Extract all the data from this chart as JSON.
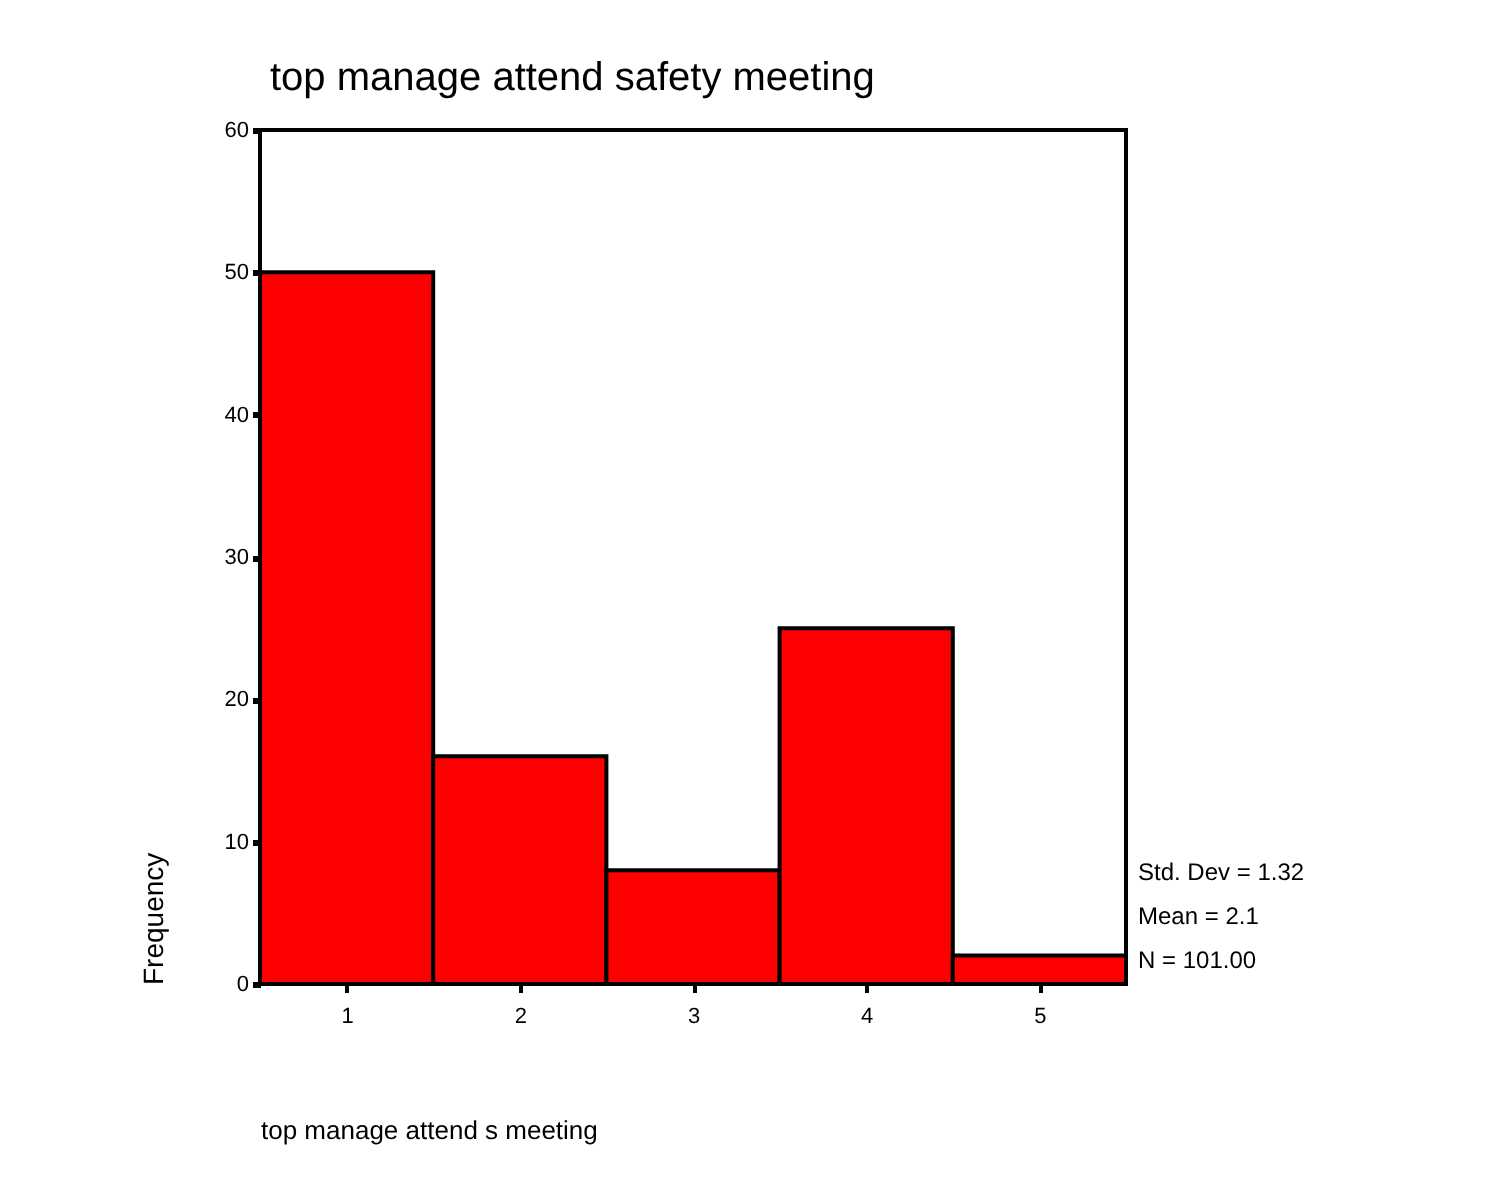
{
  "chart_data": {
    "type": "histogram",
    "title": "top manage attend safety meeting",
    "xlabel": "top manage attend s meeting",
    "ylabel": "Frequency",
    "bins": [
      0.5,
      1.5,
      2.5,
      3.5,
      4.5,
      5.5
    ],
    "values": [
      50,
      16,
      8,
      25,
      2
    ],
    "color": "#ff0000",
    "xlim": [
      0.5,
      5.5
    ],
    "xticks": [
      1,
      2,
      3,
      4,
      5
    ],
    "ylim": [
      0,
      60
    ],
    "yticks": [
      0,
      10,
      20,
      30,
      40,
      50,
      60
    ],
    "grid": false,
    "annotations": [
      "Std. Dev = 1.32",
      "Mean = 2.1",
      "N = 101.00"
    ]
  }
}
